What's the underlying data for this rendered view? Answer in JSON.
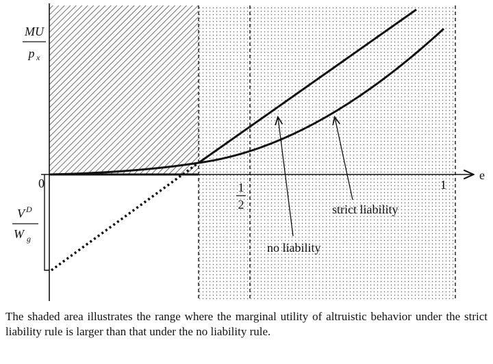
{
  "figure": {
    "y_label": {
      "numerator": "MU",
      "denominator": "p",
      "denominator_subscript": "x"
    },
    "x_label": "e",
    "origin_label": "0",
    "half_label": {
      "numerator": "1",
      "denominator": "2"
    },
    "one_label": "1",
    "intercept_label": {
      "numerator": "V",
      "numerator_superscript": "D",
      "denominator": "W",
      "denominator_subscript": "g"
    },
    "curve_labels": {
      "strict": "strict liability",
      "none": "no liability"
    }
  },
  "caption": "The shaded area illustrates the range where the marginal utility of altruistic behavior under the strict liability rule is larger than that under the no liability rule."
}
